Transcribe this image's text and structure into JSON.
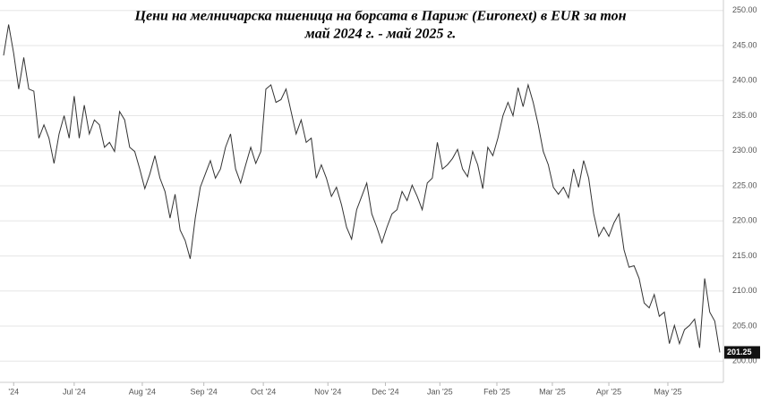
{
  "chart_data": {
    "type": "line",
    "title": "Цени на мелничарска пшеница на борсата в Париж (Euronext) в EUR за тон",
    "subtitle": "май 2024 г. - май 2025 г.",
    "series": [
      {
        "color": "#333333",
        "values": [
          243.6,
          248,
          243.9,
          238.8,
          243.3,
          238.8,
          238.5,
          231.8,
          233.7,
          231.8,
          228.2,
          232.4,
          235,
          231.8,
          237.8,
          231.8,
          236.5,
          232.4,
          234.4,
          233.7,
          230.5,
          231.2,
          229.9,
          235.6,
          234.4,
          230.5,
          229.9,
          227.4,
          224.6,
          226.7,
          229.3,
          226.1,
          224.2,
          220.4,
          223.8,
          218.7,
          217.2,
          214.6,
          220.4,
          224.8,
          226.7,
          228.6,
          226.1,
          227.4,
          230.5,
          232.4,
          227.4,
          225.4,
          228,
          230.5,
          228.2,
          229.9,
          238.8,
          239.4,
          236.9,
          237.3,
          238.8,
          235.6,
          232.4,
          234.4,
          231.2,
          231.8,
          226.1,
          228,
          226.1,
          223.5,
          224.8,
          222.3,
          219.1,
          217.4,
          221.6,
          223.5,
          225.4,
          221,
          219.1,
          216.9,
          219.1,
          221,
          221.6,
          224.2,
          222.9,
          225.1,
          223.5,
          221.6,
          225.4,
          226.1,
          231.2,
          227.4,
          228,
          228.9,
          230.2,
          227.4,
          226.3,
          229.9,
          228,
          224.6,
          230.5,
          229.3,
          231.8,
          235,
          236.9,
          235,
          239,
          236.3,
          239.4,
          236.9,
          233.7,
          229.9,
          228,
          224.8,
          223.8,
          224.8,
          223.3,
          227.4,
          224.8,
          228.6,
          226.1,
          221,
          217.8,
          219.1,
          217.8,
          219.7,
          221,
          215.9,
          213.4,
          213.6,
          211.8,
          208.3,
          207.6,
          209.5,
          206.4,
          207,
          202.5,
          205.1,
          202.5,
          204.5,
          205.1,
          206,
          201.9,
          211.8,
          207,
          205.7,
          201.25
        ]
      }
    ],
    "xlim": [
      0,
      142
    ],
    "xticks": [
      {
        "value": 2,
        "label": "'24"
      },
      {
        "value": 14,
        "label": "Jul '24"
      },
      {
        "value": 27.5,
        "label": "Aug '24"
      },
      {
        "value": 39.7,
        "label": "Sep '24"
      },
      {
        "value": 51.5,
        "label": "Oct '24"
      },
      {
        "value": 64.3,
        "label": "Nov '24"
      },
      {
        "value": 75.7,
        "label": "Dec '24"
      },
      {
        "value": 86.5,
        "label": "Jan '25"
      },
      {
        "value": 97.8,
        "label": "Feb '25"
      },
      {
        "value": 108.8,
        "label": "Mar '25"
      },
      {
        "value": 120,
        "label": "Apr '25"
      },
      {
        "value": 131.7,
        "label": "May '25"
      }
    ],
    "ylim": [
      198,
      251.5
    ],
    "yticks": [
      {
        "value": 200,
        "label": "200.00"
      },
      {
        "value": 205,
        "label": "205.00"
      },
      {
        "value": 210,
        "label": "210.00"
      },
      {
        "value": 215,
        "label": "215.00"
      },
      {
        "value": 220,
        "label": "220.00"
      },
      {
        "value": 225,
        "label": "225.00"
      },
      {
        "value": 230,
        "label": "230.00"
      },
      {
        "value": 235,
        "label": "235.00"
      },
      {
        "value": 240,
        "label": "240.00"
      },
      {
        "value": 245,
        "label": "245.00"
      },
      {
        "value": 250,
        "label": "250.00"
      }
    ],
    "grid": true
  }
}
